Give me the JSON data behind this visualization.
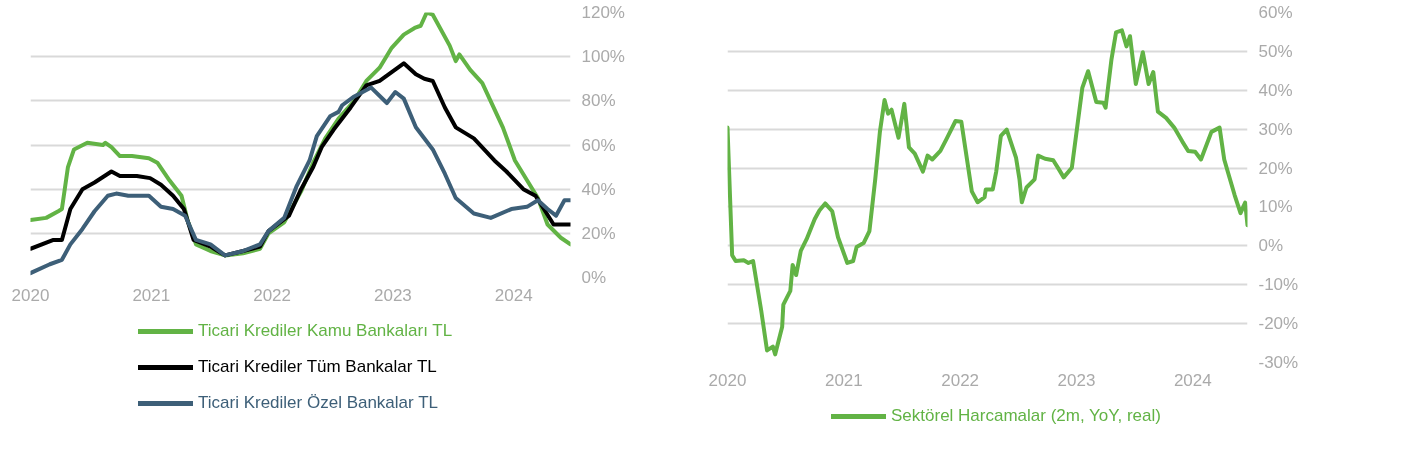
{
  "chart_data": [
    {
      "type": "line",
      "xlim": [
        2020,
        2024.47
      ],
      "xticks": [
        2020,
        2021,
        2022,
        2023,
        2024
      ],
      "ylim": [
        0,
        120
      ],
      "yticks": [
        {
          "value": 0,
          "label": "0%"
        },
        {
          "value": 20,
          "label": "20%"
        },
        {
          "value": 40,
          "label": "40%"
        },
        {
          "value": 60,
          "label": "60%"
        },
        {
          "value": 80,
          "label": "80%"
        },
        {
          "value": 100,
          "label": "100%"
        },
        {
          "value": 120,
          "label": "120%"
        }
      ],
      "grid": "y",
      "legend": "bottom",
      "line_style": "solid",
      "series": [
        {
          "name": "Ticari Krediler Kamu Bankaları TL",
          "color": "#62b345",
          "x": [
            2020.0,
            2020.13,
            2020.23,
            2020.26,
            2020.31,
            2020.36,
            2020.47,
            2020.6,
            2020.62,
            2020.67,
            2020.74,
            2020.84,
            2020.98,
            2021.05,
            2021.15,
            2021.25,
            2021.3,
            2021.37,
            2021.49,
            2021.61,
            2021.76,
            2021.9,
            2021.97,
            2022.1,
            2022.24,
            2022.34,
            2022.44,
            2022.55,
            2022.68,
            2022.78,
            2022.89,
            2022.99,
            2023.09,
            2023.18,
            2023.23,
            2023.28,
            2023.33,
            2023.47,
            2023.52,
            2023.55,
            2023.64,
            2023.74,
            2023.91,
            2024.01,
            2024.11,
            2024.2,
            2024.28,
            2024.39,
            2024.47
          ],
          "values": [
            26,
            27,
            30,
            31,
            50,
            58,
            61,
            60,
            61,
            59,
            55,
            55,
            54,
            52,
            44,
            37,
            26,
            15,
            12,
            10,
            11,
            13,
            20,
            25,
            39,
            52,
            63,
            72,
            80,
            89,
            95,
            104,
            110,
            113,
            114,
            120,
            119,
            105,
            98,
            101,
            94,
            88,
            68,
            53,
            44,
            36,
            24,
            18,
            15
          ]
        },
        {
          "name": "Ticari Krediler Tüm Bankalar TL",
          "color": "#000000",
          "x": [
            2020.0,
            2020.19,
            2020.26,
            2020.33,
            2020.43,
            2020.53,
            2020.67,
            2020.74,
            2020.88,
            2020.99,
            2021.08,
            2021.18,
            2021.27,
            2021.35,
            2021.49,
            2021.61,
            2021.76,
            2021.9,
            2021.97,
            2022.14,
            2022.24,
            2022.34,
            2022.41,
            2022.51,
            2022.65,
            2022.78,
            2022.89,
            2022.99,
            2023.09,
            2023.19,
            2023.26,
            2023.33,
            2023.43,
            2023.52,
            2023.67,
            2023.84,
            2023.94,
            2024.08,
            2024.18,
            2024.25,
            2024.33,
            2024.47
          ],
          "values": [
            13,
            17,
            17,
            31,
            40,
            43,
            48,
            46,
            46,
            45,
            42,
            37,
            31,
            17,
            14,
            10,
            12,
            14,
            21,
            28,
            40,
            50,
            59,
            67,
            77,
            87,
            89,
            93,
            97,
            92,
            90,
            89,
            77,
            68,
            63,
            53,
            48,
            40,
            37,
            31,
            24,
            24
          ]
        },
        {
          "name": "Ticari Krediler Özel Bankalar TL",
          "color": "#3d5f78",
          "x": [
            2020.0,
            2020.16,
            2020.26,
            2020.33,
            2020.43,
            2020.53,
            2020.64,
            2020.71,
            2020.81,
            2020.98,
            2021.08,
            2021.18,
            2021.28,
            2021.37,
            2021.49,
            2021.61,
            2021.76,
            2021.9,
            2021.97,
            2022.1,
            2022.2,
            2022.31,
            2022.37,
            2022.48,
            2022.55,
            2022.58,
            2022.68,
            2022.82,
            2022.95,
            2023.02,
            2023.09,
            2023.19,
            2023.33,
            2023.43,
            2023.52,
            2023.67,
            2023.81,
            2023.98,
            2024.11,
            2024.2,
            2024.28,
            2024.35,
            2024.42,
            2024.47
          ],
          "values": [
            2,
            6,
            8,
            15,
            22,
            30,
            37,
            38,
            37,
            37,
            32,
            31,
            28,
            17,
            15,
            10,
            12,
            15,
            21,
            27,
            41,
            53,
            64,
            73,
            75,
            78,
            82,
            86,
            79,
            84,
            81,
            68,
            58,
            47,
            36,
            29,
            27,
            31,
            32,
            35,
            31,
            28,
            35,
            35
          ]
        }
      ]
    },
    {
      "type": "line",
      "xlim": [
        2020,
        2024.47
      ],
      "xticks": [
        2020,
        2021,
        2022,
        2023,
        2024
      ],
      "ylim": [
        -30,
        60
      ],
      "yticks": [
        {
          "value": -30,
          "label": "-30%"
        },
        {
          "value": -20,
          "label": "-20%"
        },
        {
          "value": -10,
          "label": "-10%"
        },
        {
          "value": 0,
          "label": "0%"
        },
        {
          "value": 10,
          "label": "10%"
        },
        {
          "value": 20,
          "label": "20%"
        },
        {
          "value": 30,
          "label": "30%"
        },
        {
          "value": 40,
          "label": "40%"
        },
        {
          "value": 50,
          "label": "50%"
        },
        {
          "value": 60,
          "label": "60%"
        }
      ],
      "grid": "y",
      "legend": "bottom",
      "line_style": "solid",
      "series": [
        {
          "name": "Sektörel Harcamalar (2m, YoY, real)",
          "color": "#62b345",
          "x": [
            2020.0,
            2020.04,
            2020.07,
            2020.14,
            2020.18,
            2020.22,
            2020.29,
            2020.34,
            2020.39,
            2020.41,
            2020.47,
            2020.48,
            2020.54,
            2020.56,
            2020.59,
            2020.63,
            2020.68,
            2020.75,
            2020.79,
            2020.84,
            2020.9,
            2020.95,
            2021.03,
            2021.08,
            2021.11,
            2021.17,
            2021.22,
            2021.27,
            2021.31,
            2021.35,
            2021.38,
            2021.41,
            2021.47,
            2021.52,
            2021.56,
            2021.61,
            2021.68,
            2021.72,
            2021.76,
            2021.83,
            2021.88,
            2021.96,
            2022.01,
            2022.1,
            2022.15,
            2022.21,
            2022.22,
            2022.28,
            2022.31,
            2022.35,
            2022.4,
            2022.48,
            2022.51,
            2022.53,
            2022.57,
            2022.64,
            2022.67,
            2022.73,
            2022.8,
            2022.85,
            2022.89,
            2022.96,
            2023.05,
            2023.1,
            2023.17,
            2023.23,
            2023.25,
            2023.3,
            2023.34,
            2023.39,
            2023.43,
            2023.46,
            2023.51,
            2023.57,
            2023.62,
            2023.66,
            2023.7,
            2023.77,
            2023.84,
            2023.91,
            2023.96,
            2024.02,
            2024.07,
            2024.16,
            2024.23,
            2024.27,
            2024.3,
            2024.36,
            2024.41,
            2024.45,
            2024.47
          ],
          "values": [
            30.4,
            -2.4,
            -3.9,
            -3.7,
            -4.4,
            -3.9,
            -16.7,
            -26.9,
            -25.9,
            -27.9,
            -20.8,
            -15.1,
            -11.6,
            -4.9,
            -7.5,
            -1.3,
            1.7,
            6.9,
            9.1,
            10.9,
            8.9,
            2.2,
            -4.4,
            -3.9,
            -0.3,
            0.7,
            3.8,
            17.1,
            29.3,
            37.5,
            34,
            35,
            27.8,
            36.5,
            25.3,
            23.7,
            19.1,
            23.2,
            22.2,
            24.4,
            27.3,
            32.1,
            31.9,
            14,
            11.2,
            12.5,
            14.5,
            14.5,
            19.1,
            28.3,
            29.9,
            22.7,
            17.1,
            11.2,
            15,
            17.1,
            23.2,
            22.4,
            22,
            19.6,
            17.6,
            20.1,
            40.6,
            44.9,
            37,
            36.8,
            35.5,
            47.8,
            54.9,
            55.4,
            51.3,
            53.9,
            41.6,
            49.8,
            41.6,
            44.7,
            34.5,
            32.9,
            30.4,
            26.8,
            24.4,
            24.2,
            22.2,
            29.3,
            30.4,
            22.2,
            19.1,
            13,
            8.4,
            11.1,
            5.3
          ]
        }
      ]
    }
  ]
}
